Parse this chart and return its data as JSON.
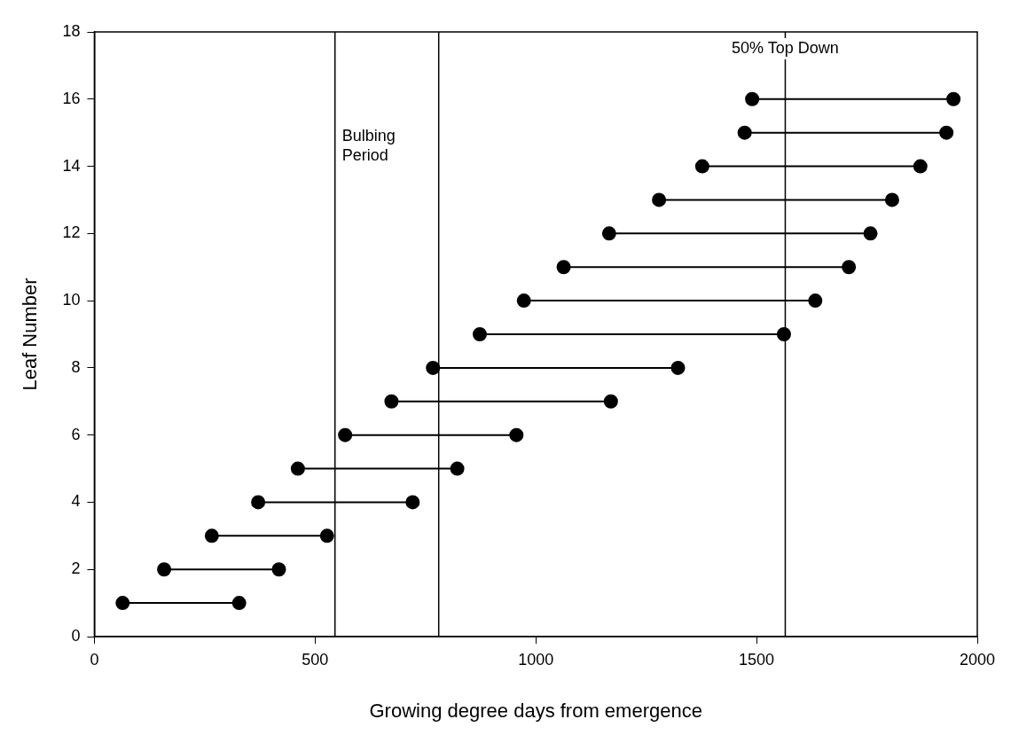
{
  "chart_data": {
    "type": "line",
    "xlabel": "Growing degree days from emergence",
    "ylabel": "Leaf Number",
    "xlim": [
      0,
      2000
    ],
    "xticks": [
      0,
      500,
      1000,
      1500,
      2000
    ],
    "ylim": [
      0,
      18
    ],
    "yticks": [
      0,
      2,
      4,
      6,
      8,
      10,
      12,
      14,
      16,
      18
    ],
    "grid": false,
    "legend": false,
    "marker": "circle",
    "line_style": "solid",
    "series": [
      {
        "color": "#000000",
        "x": [
          64,
          328
        ],
        "values": [
          1,
          1
        ]
      },
      {
        "color": "#000000",
        "x": [
          158,
          418
        ],
        "values": [
          2,
          2
        ]
      },
      {
        "color": "#000000",
        "x": [
          266,
          527
        ],
        "values": [
          3,
          3
        ]
      },
      {
        "color": "#000000",
        "x": [
          371,
          721
        ],
        "values": [
          4,
          4
        ]
      },
      {
        "color": "#000000",
        "x": [
          461,
          822
        ],
        "values": [
          5,
          5
        ]
      },
      {
        "color": "#000000",
        "x": [
          568,
          956
        ],
        "values": [
          6,
          6
        ]
      },
      {
        "color": "#000000",
        "x": [
          673,
          1170
        ],
        "values": [
          7,
          7
        ]
      },
      {
        "color": "#000000",
        "x": [
          767,
          1322
        ],
        "values": [
          8,
          8
        ]
      },
      {
        "color": "#000000",
        "x": [
          873,
          1562
        ],
        "values": [
          9,
          9
        ]
      },
      {
        "color": "#000000",
        "x": [
          973,
          1633
        ],
        "values": [
          10,
          10
        ]
      },
      {
        "color": "#000000",
        "x": [
          1063,
          1709
        ],
        "values": [
          11,
          11
        ]
      },
      {
        "color": "#000000",
        "x": [
          1166,
          1758
        ],
        "values": [
          12,
          12
        ]
      },
      {
        "color": "#000000",
        "x": [
          1279,
          1807
        ],
        "values": [
          13,
          13
        ]
      },
      {
        "color": "#000000",
        "x": [
          1377,
          1871
        ],
        "values": [
          14,
          14
        ]
      },
      {
        "color": "#000000",
        "x": [
          1473,
          1930
        ],
        "values": [
          15,
          15
        ]
      },
      {
        "color": "#000000",
        "x": [
          1490,
          1946
        ],
        "values": [
          16,
          16
        ]
      }
    ],
    "ref_lines": [
      {
        "axis": "x",
        "value": 545,
        "color": "#000000"
      },
      {
        "axis": "x",
        "value": 780,
        "color": "#000000"
      },
      {
        "axis": "x",
        "value": 1565,
        "color": "#000000"
      }
    ],
    "annotations": [
      {
        "text": "Bulbing Period",
        "x": 545,
        "y": 14.6
      },
      {
        "text": "50% Top Down",
        "x": 1565,
        "y": 17.5
      }
    ]
  }
}
